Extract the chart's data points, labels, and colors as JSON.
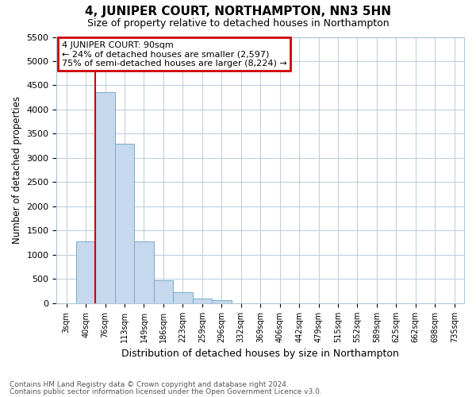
{
  "title": "4, JUNIPER COURT, NORTHAMPTON, NN3 5HN",
  "subtitle": "Size of property relative to detached houses in Northampton",
  "xlabel": "Distribution of detached houses by size in Northampton",
  "ylabel": "Number of detached properties",
  "bar_color": "#c5d8ed",
  "bar_edge_color": "#7aaac8",
  "vline_color": "#cc0000",
  "vline_x": 2,
  "categories": [
    "3sqm",
    "40sqm",
    "76sqm",
    "113sqm",
    "149sqm",
    "186sqm",
    "223sqm",
    "259sqm",
    "296sqm",
    "332sqm",
    "369sqm",
    "406sqm",
    "442sqm",
    "479sqm",
    "515sqm",
    "552sqm",
    "589sqm",
    "625sqm",
    "662sqm",
    "698sqm",
    "735sqm"
  ],
  "bar_heights": [
    0,
    1270,
    4360,
    3300,
    1270,
    480,
    235,
    100,
    70,
    0,
    0,
    0,
    0,
    0,
    0,
    0,
    0,
    0,
    0,
    0,
    0
  ],
  "ylim": [
    0,
    5500
  ],
  "yticks": [
    0,
    500,
    1000,
    1500,
    2000,
    2500,
    3000,
    3500,
    4000,
    4500,
    5000,
    5500
  ],
  "annotation_text": "4 JUNIPER COURT: 90sqm\n← 24% of detached houses are smaller (2,597)\n75% of semi-detached houses are larger (8,224) →",
  "annotation_box_color": "#ffffff",
  "annotation_box_edge_color": "#cc0000",
  "footer_line1": "Contains HM Land Registry data © Crown copyright and database right 2024.",
  "footer_line2": "Contains public sector information licensed under the Open Government Licence v3.0.",
  "bg_color": "#ffffff",
  "grid_color": "#c0d0e0"
}
